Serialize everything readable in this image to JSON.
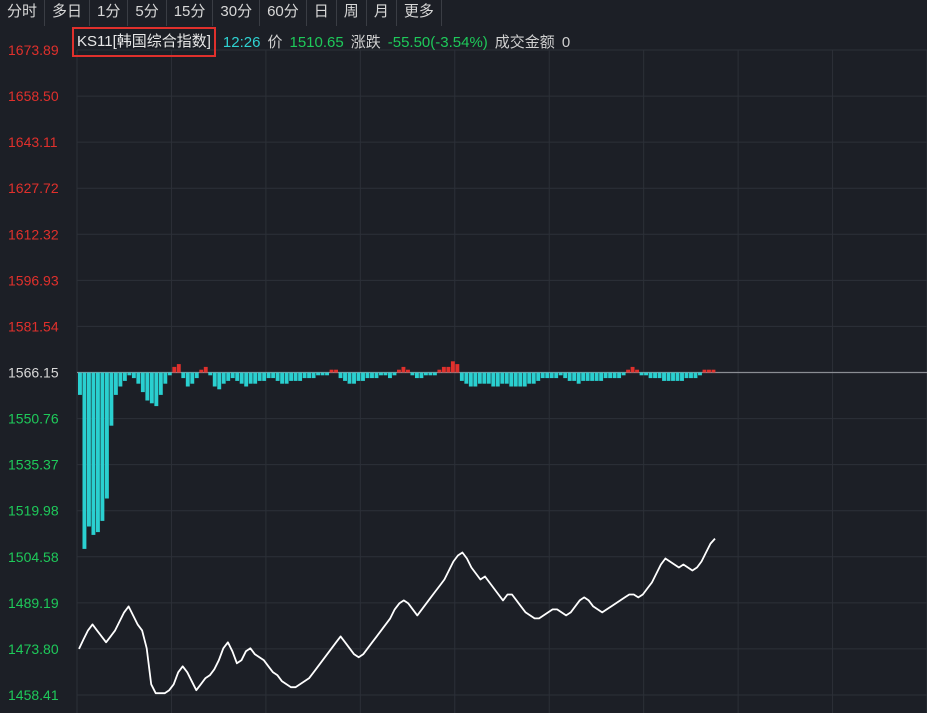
{
  "tabs": [
    "分时",
    "多日",
    "1分",
    "5分",
    "15分",
    "30分",
    "60分",
    "日",
    "周",
    "月",
    "更多"
  ],
  "info": {
    "code_name": "KS11[韩国综合指数]",
    "time": "12:26",
    "price_label": "价",
    "price": "1510.65",
    "change_label": "涨跌",
    "change": "-55.50(-3.54%)",
    "turnover_label": "成交金额",
    "turnover": "0"
  },
  "colors": {
    "up": "#e0302c",
    "down": "#2ad0d0",
    "line": "#ffffff",
    "neutral": "#d8d8d8",
    "background": "#1c1f26"
  },
  "chart_data": {
    "type": "line",
    "title": "",
    "xlabel": "",
    "ylabel": "",
    "ylim": [
      1458.41,
      1673.89
    ],
    "prev_close": 1566.15,
    "yticks": [
      "1673.89",
      "1658.50",
      "1643.11",
      "1627.72",
      "1612.32",
      "1596.93",
      "1581.54",
      "1566.15",
      "1550.76",
      "1535.37",
      "1519.98",
      "1504.58",
      "1489.19",
      "1473.80",
      "1458.41"
    ],
    "series": [
      {
        "name": "",
        "values": [
          1473.8,
          1477,
          1480,
          1482,
          1480,
          1478,
          1476,
          1478,
          1480,
          1483,
          1486,
          1488,
          1485,
          1482,
          1480,
          1474,
          1462,
          1459,
          1459,
          1459,
          1460,
          1462,
          1466,
          1468,
          1466,
          1463,
          1460,
          1462,
          1464,
          1465,
          1467,
          1470,
          1474,
          1476,
          1473,
          1469,
          1470,
          1473,
          1474,
          1472,
          1471,
          1470,
          1468,
          1466,
          1465,
          1463,
          1462,
          1461,
          1461,
          1462,
          1463,
          1464,
          1466,
          1468,
          1470,
          1472,
          1474,
          1476,
          1478,
          1476,
          1474,
          1472,
          1471,
          1472,
          1474,
          1476,
          1478,
          1480,
          1482,
          1484,
          1487,
          1489,
          1490,
          1489,
          1487,
          1485,
          1487,
          1489,
          1491,
          1493,
          1495,
          1497,
          1500,
          1503,
          1505,
          1506,
          1504,
          1501,
          1499,
          1497,
          1498,
          1496,
          1494,
          1492,
          1490,
          1492,
          1492,
          1490,
          1488,
          1486,
          1485,
          1484,
          1484,
          1485,
          1486,
          1487,
          1487,
          1486,
          1485,
          1486,
          1488,
          1490,
          1491,
          1490,
          1488,
          1487,
          1486,
          1487,
          1488,
          1489,
          1490,
          1491,
          1492,
          1492,
          1491,
          1492,
          1494,
          1496,
          1499,
          1502,
          1504,
          1503,
          1502,
          1501,
          1502,
          1501,
          1500,
          1501,
          1503,
          1506,
          1509,
          1510.65
        ]
      }
    ],
    "bars": [
      -8,
      -63,
      -55,
      -58,
      -57,
      -53,
      -45,
      -19,
      -8,
      -5,
      -3,
      -1,
      -2,
      -4,
      -7,
      -10,
      -11,
      -12,
      -8,
      -4,
      -1,
      2,
      3,
      -2,
      -5,
      -4,
      -2,
      1,
      2,
      -1,
      -5,
      -6,
      -4,
      -3,
      -2,
      -3,
      -4,
      -5,
      -4,
      -4,
      -3,
      -3,
      -2,
      -2,
      -3,
      -4,
      -4,
      -3,
      -3,
      -3,
      -2,
      -2,
      -2,
      -1,
      -1,
      -1,
      1,
      1,
      -2,
      -3,
      -4,
      -4,
      -3,
      -3,
      -2,
      -2,
      -2,
      -1,
      -1,
      -2,
      -1,
      1,
      2,
      1,
      -1,
      -2,
      -2,
      -1,
      -1,
      -1,
      1,
      2,
      2,
      4,
      3,
      -3,
      -4,
      -5,
      -5,
      -4,
      -4,
      -4,
      -5,
      -5,
      -4,
      -4,
      -5,
      -5,
      -5,
      -5,
      -4,
      -4,
      -3,
      -2,
      -2,
      -2,
      -2,
      -1,
      -2,
      -3,
      -3,
      -4,
      -3,
      -3,
      -3,
      -3,
      -3,
      -2,
      -2,
      -2,
      -2,
      -1,
      1,
      2,
      1,
      -1,
      -1,
      -2,
      -2,
      -2,
      -3,
      -3,
      -3,
      -3,
      -3,
      -2,
      -2,
      -2,
      -1,
      1,
      1,
      1
    ]
  }
}
